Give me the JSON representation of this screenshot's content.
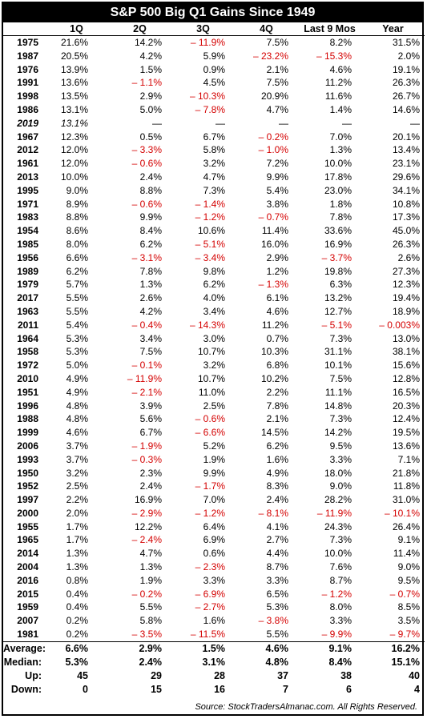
{
  "chart_data": {
    "type": "table",
    "title": "S&P 500 Big Q1 Gains Since 1949",
    "columns": [
      "",
      "1Q",
      "2Q",
      "3Q",
      "4Q",
      "Last 9 Mos",
      "Year"
    ],
    "rows": [
      {
        "year": "1975",
        "values": [
          "21.6%",
          "14.2%",
          "– 11.9%",
          "7.5%",
          "8.2%",
          "31.5%"
        ]
      },
      {
        "year": "1987",
        "values": [
          "20.5%",
          "4.2%",
          "5.9%",
          "– 23.2%",
          "– 15.3%",
          "2.0%"
        ]
      },
      {
        "year": "1976",
        "values": [
          "13.9%",
          "1.5%",
          "0.9%",
          "2.1%",
          "4.6%",
          "19.1%"
        ]
      },
      {
        "year": "1991",
        "values": [
          "13.6%",
          "– 1.1%",
          "4.5%",
          "7.5%",
          "11.2%",
          "26.3%"
        ]
      },
      {
        "year": "1998",
        "values": [
          "13.5%",
          "2.9%",
          "– 10.3%",
          "20.9%",
          "11.6%",
          "26.7%"
        ]
      },
      {
        "year": "1986",
        "values": [
          "13.1%",
          "5.0%",
          "– 7.8%",
          "4.7%",
          "1.4%",
          "14.6%"
        ]
      },
      {
        "year": "2019",
        "italic": true,
        "values": [
          "13.1%",
          "—",
          "—",
          "—",
          "—",
          "—"
        ]
      },
      {
        "year": "1967",
        "values": [
          "12.3%",
          "0.5%",
          "6.7%",
          "– 0.2%",
          "7.0%",
          "20.1%"
        ]
      },
      {
        "year": "2012",
        "values": [
          "12.0%",
          "– 3.3%",
          "5.8%",
          "– 1.0%",
          "1.3%",
          "13.4%"
        ]
      },
      {
        "year": "1961",
        "values": [
          "12.0%",
          "– 0.6%",
          "3.2%",
          "7.2%",
          "10.0%",
          "23.1%"
        ]
      },
      {
        "year": "2013",
        "values": [
          "10.0%",
          "2.4%",
          "4.7%",
          "9.9%",
          "17.8%",
          "29.6%"
        ]
      },
      {
        "year": "1995",
        "values": [
          "9.0%",
          "8.8%",
          "7.3%",
          "5.4%",
          "23.0%",
          "34.1%"
        ]
      },
      {
        "year": "1971",
        "values": [
          "8.9%",
          "– 0.6%",
          "– 1.4%",
          "3.8%",
          "1.8%",
          "10.8%"
        ]
      },
      {
        "year": "1983",
        "values": [
          "8.8%",
          "9.9%",
          "– 1.2%",
          "– 0.7%",
          "7.8%",
          "17.3%"
        ]
      },
      {
        "year": "1954",
        "values": [
          "8.6%",
          "8.4%",
          "10.6%",
          "11.4%",
          "33.6%",
          "45.0%"
        ]
      },
      {
        "year": "1985",
        "values": [
          "8.0%",
          "6.2%",
          "– 5.1%",
          "16.0%",
          "16.9%",
          "26.3%"
        ]
      },
      {
        "year": "1956",
        "values": [
          "6.6%",
          "– 3.1%",
          "– 3.4%",
          "2.9%",
          "– 3.7%",
          "2.6%"
        ]
      },
      {
        "year": "1989",
        "values": [
          "6.2%",
          "7.8%",
          "9.8%",
          "1.2%",
          "19.8%",
          "27.3%"
        ]
      },
      {
        "year": "1979",
        "values": [
          "5.7%",
          "1.3%",
          "6.2%",
          "– 1.3%",
          "6.3%",
          "12.3%"
        ]
      },
      {
        "year": "2017",
        "values": [
          "5.5%",
          "2.6%",
          "4.0%",
          "6.1%",
          "13.2%",
          "19.4%"
        ]
      },
      {
        "year": "1963",
        "values": [
          "5.5%",
          "4.2%",
          "3.4%",
          "4.6%",
          "12.7%",
          "18.9%"
        ]
      },
      {
        "year": "2011",
        "values": [
          "5.4%",
          "– 0.4%",
          "– 14.3%",
          "11.2%",
          "– 5.1%",
          "– 0.003%"
        ]
      },
      {
        "year": "1964",
        "values": [
          "5.3%",
          "3.4%",
          "3.0%",
          "0.7%",
          "7.3%",
          "13.0%"
        ]
      },
      {
        "year": "1958",
        "values": [
          "5.3%",
          "7.5%",
          "10.7%",
          "10.3%",
          "31.1%",
          "38.1%"
        ]
      },
      {
        "year": "1972",
        "values": [
          "5.0%",
          "– 0.1%",
          "3.2%",
          "6.8%",
          "10.1%",
          "15.6%"
        ]
      },
      {
        "year": "2010",
        "values": [
          "4.9%",
          "– 11.9%",
          "10.7%",
          "10.2%",
          "7.5%",
          "12.8%"
        ]
      },
      {
        "year": "1951",
        "values": [
          "4.9%",
          "– 2.1%",
          "11.0%",
          "2.2%",
          "11.1%",
          "16.5%"
        ]
      },
      {
        "year": "1996",
        "values": [
          "4.8%",
          "3.9%",
          "2.5%",
          "7.8%",
          "14.8%",
          "20.3%"
        ]
      },
      {
        "year": "1988",
        "values": [
          "4.8%",
          "5.6%",
          "– 0.6%",
          "2.1%",
          "7.3%",
          "12.4%"
        ]
      },
      {
        "year": "1999",
        "values": [
          "4.6%",
          "6.7%",
          "– 6.6%",
          "14.5%",
          "14.2%",
          "19.5%"
        ]
      },
      {
        "year": "2006",
        "values": [
          "3.7%",
          "– 1.9%",
          "5.2%",
          "6.2%",
          "9.5%",
          "13.6%"
        ]
      },
      {
        "year": "1993",
        "values": [
          "3.7%",
          "– 0.3%",
          "1.9%",
          "1.6%",
          "3.3%",
          "7.1%"
        ]
      },
      {
        "year": "1950",
        "values": [
          "3.2%",
          "2.3%",
          "9.9%",
          "4.9%",
          "18.0%",
          "21.8%"
        ]
      },
      {
        "year": "1952",
        "values": [
          "2.5%",
          "2.4%",
          "– 1.7%",
          "8.3%",
          "9.0%",
          "11.8%"
        ]
      },
      {
        "year": "1997",
        "values": [
          "2.2%",
          "16.9%",
          "7.0%",
          "2.4%",
          "28.2%",
          "31.0%"
        ]
      },
      {
        "year": "2000",
        "values": [
          "2.0%",
          "– 2.9%",
          "– 1.2%",
          "– 8.1%",
          "– 11.9%",
          "– 10.1%"
        ]
      },
      {
        "year": "1955",
        "values": [
          "1.7%",
          "12.2%",
          "6.4%",
          "4.1%",
          "24.3%",
          "26.4%"
        ]
      },
      {
        "year": "1965",
        "values": [
          "1.7%",
          "– 2.4%",
          "6.9%",
          "2.7%",
          "7.3%",
          "9.1%"
        ]
      },
      {
        "year": "2014",
        "values": [
          "1.3%",
          "4.7%",
          "0.6%",
          "4.4%",
          "10.0%",
          "11.4%"
        ]
      },
      {
        "year": "2004",
        "values": [
          "1.3%",
          "1.3%",
          "– 2.3%",
          "8.7%",
          "7.6%",
          "9.0%"
        ]
      },
      {
        "year": "2016",
        "values": [
          "0.8%",
          "1.9%",
          "3.3%",
          "3.3%",
          "8.7%",
          "9.5%"
        ]
      },
      {
        "year": "2015",
        "values": [
          "0.4%",
          "– 0.2%",
          "– 6.9%",
          "6.5%",
          "– 1.2%",
          "– 0.7%"
        ]
      },
      {
        "year": "1959",
        "values": [
          "0.4%",
          "5.5%",
          "– 2.7%",
          "5.3%",
          "8.0%",
          "8.5%"
        ]
      },
      {
        "year": "2007",
        "values": [
          "0.2%",
          "5.8%",
          "1.6%",
          "– 3.8%",
          "3.3%",
          "3.5%"
        ]
      },
      {
        "year": "1981",
        "values": [
          "0.2%",
          "– 3.5%",
          "– 11.5%",
          "5.5%",
          "– 9.9%",
          "– 9.7%"
        ]
      }
    ],
    "summary": [
      {
        "label": "Average:",
        "values": [
          "6.6%",
          "2.9%",
          "1.5%",
          "4.6%",
          "9.1%",
          "16.2%"
        ]
      },
      {
        "label": "Median:",
        "values": [
          "5.3%",
          "2.4%",
          "3.1%",
          "4.8%",
          "8.4%",
          "15.1%"
        ]
      },
      {
        "label": "Up:",
        "values": [
          "45",
          "29",
          "28",
          "37",
          "38",
          "40"
        ]
      },
      {
        "label": "Down:",
        "values": [
          "0",
          "15",
          "16",
          "7",
          "6",
          "4"
        ]
      }
    ],
    "source": "Source: StockTradersAlmanac.com. All Rights Reserved.",
    "negative_color": "#d40000"
  }
}
